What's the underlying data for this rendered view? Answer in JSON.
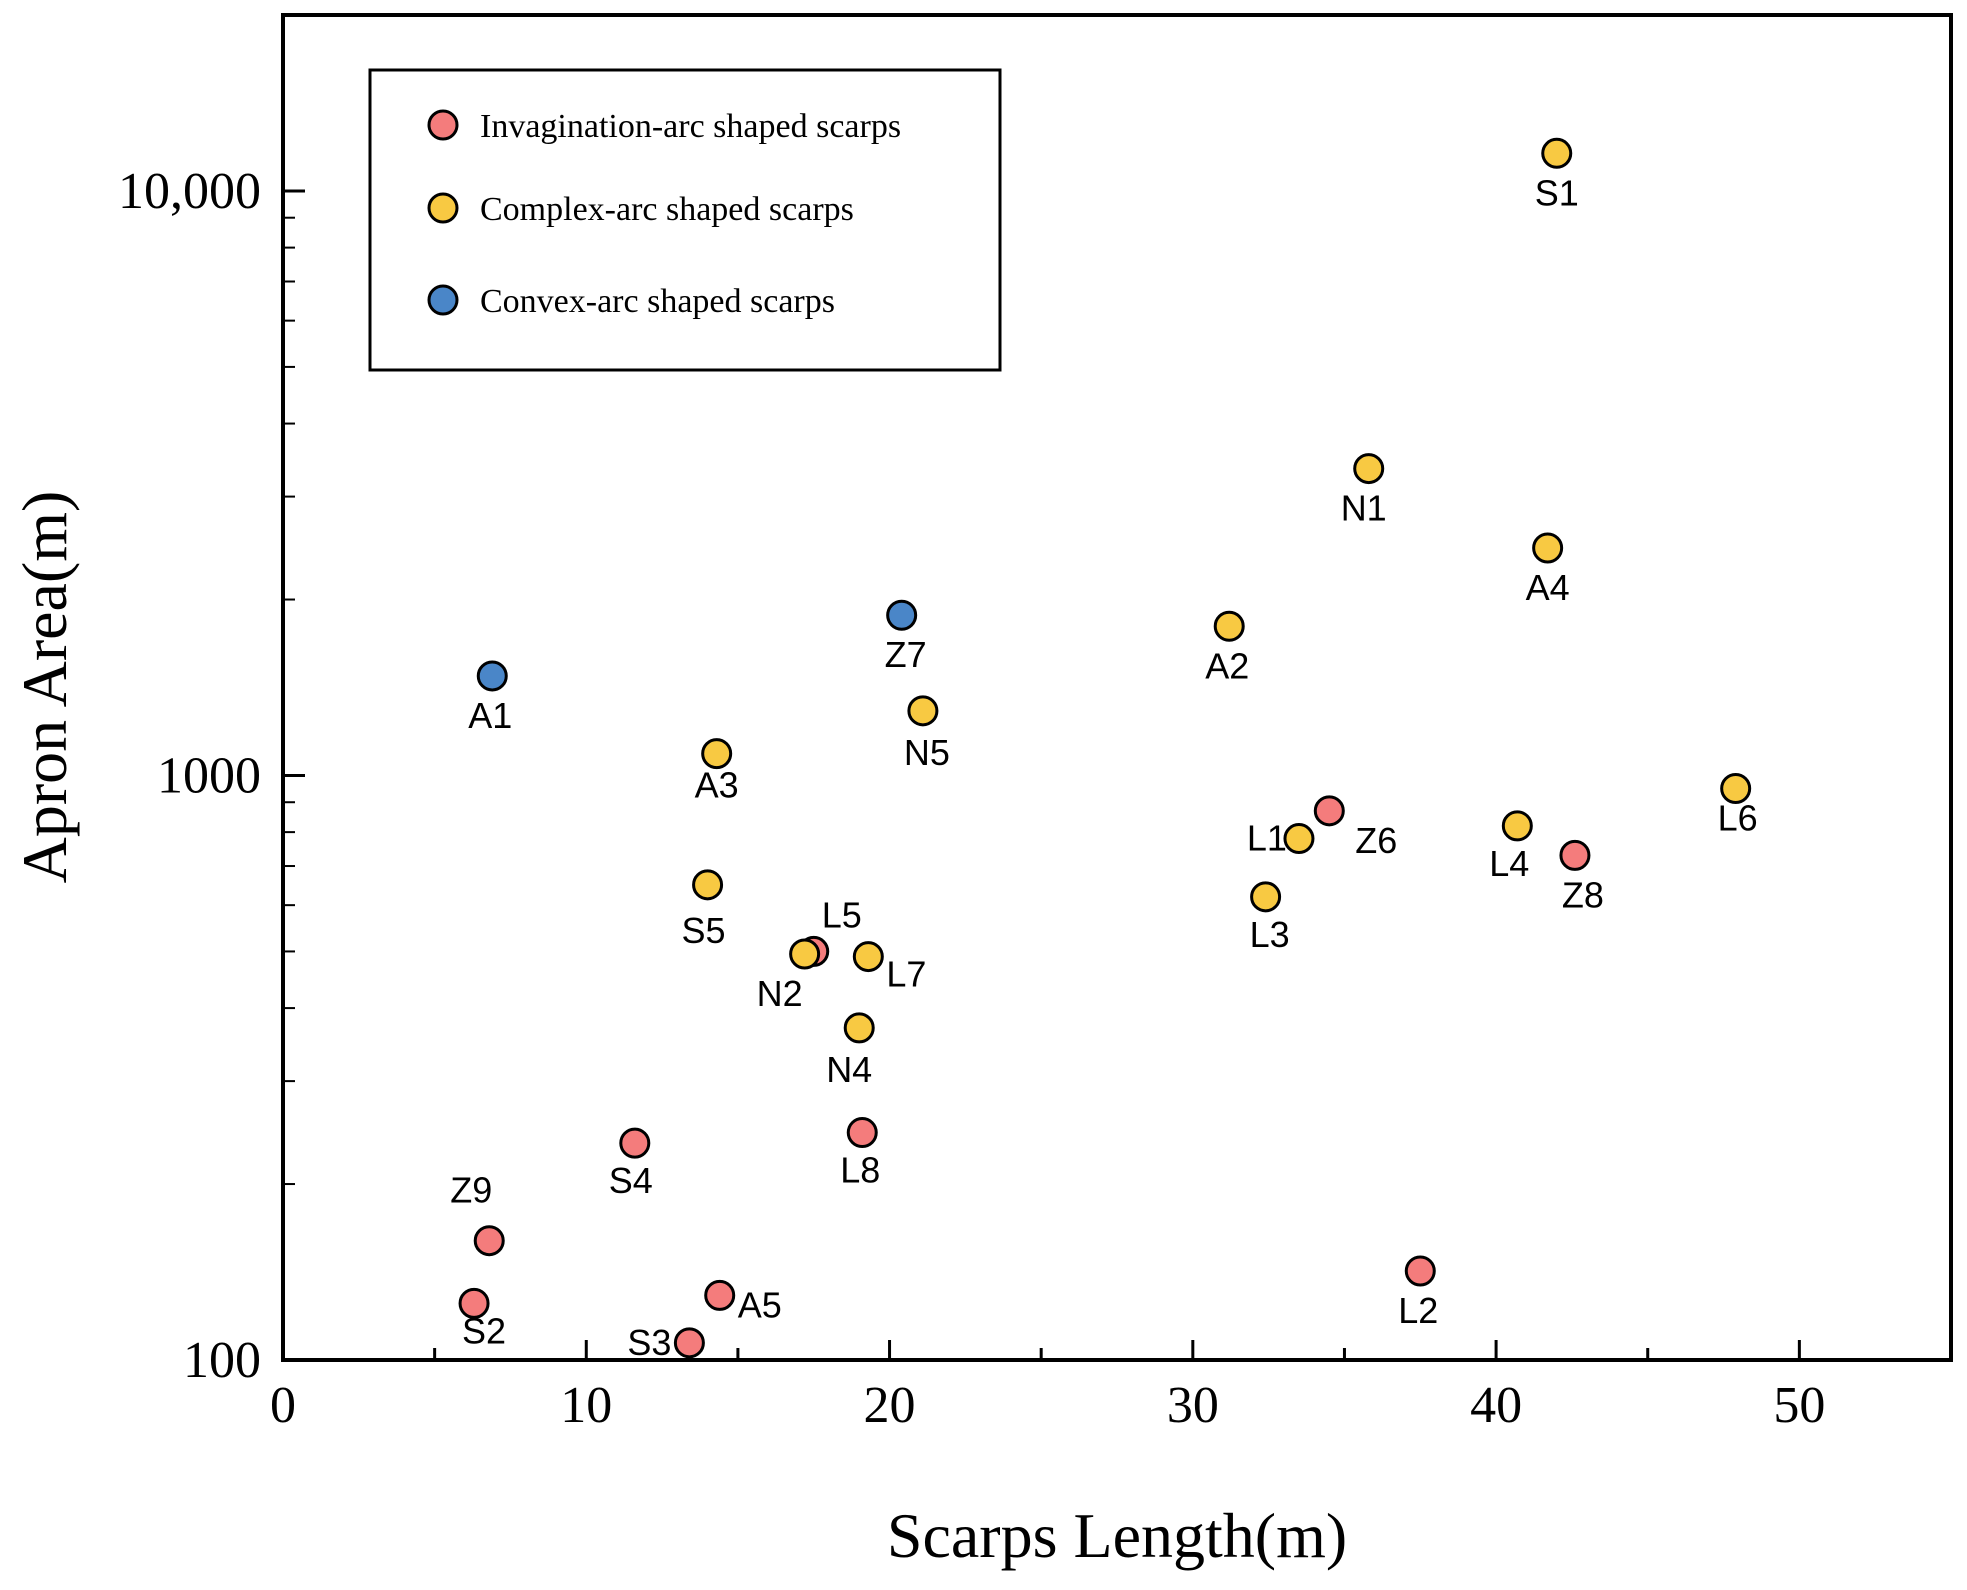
{
  "chart_data": {
    "type": "scatter",
    "title": "",
    "xlabel": "Scarps Length(m)",
    "ylabel": "Apron Area(m)",
    "xlim": [
      0,
      55
    ],
    "ylim": [
      100,
      20000
    ],
    "yscale": "log",
    "xticks": [
      0,
      10,
      20,
      30,
      40,
      50
    ],
    "xtick_labels": [
      "0",
      "10",
      "20",
      "30",
      "40",
      "50"
    ],
    "yticks": [
      100,
      1000,
      10000
    ],
    "ytick_labels": [
      "100",
      "1000",
      "10,000"
    ],
    "grid": false,
    "legend_position": "top-left",
    "series": [
      {
        "name": "Invagination-arc shaped scarps",
        "color": "#F47C7C",
        "points": [
          {
            "label": "Z6",
            "x": 34.5,
            "y": 870
          },
          {
            "label": "Z8",
            "x": 42.6,
            "y": 730
          },
          {
            "label": "L5",
            "x": 17.5,
            "y": 500
          },
          {
            "label": "L8",
            "x": 19.1,
            "y": 245
          },
          {
            "label": "S4",
            "x": 11.6,
            "y": 235
          },
          {
            "label": "Z9",
            "x": 6.8,
            "y": 160
          },
          {
            "label": "S2",
            "x": 6.3,
            "y": 125
          },
          {
            "label": "A5",
            "x": 14.4,
            "y": 129
          },
          {
            "label": "S3",
            "x": 13.4,
            "y": 107
          },
          {
            "label": "L2",
            "x": 37.5,
            "y": 142
          }
        ]
      },
      {
        "name": "Complex-arc shaped scarps",
        "color": "#F8C942",
        "points": [
          {
            "label": "S1",
            "x": 42.0,
            "y": 11600
          },
          {
            "label": "N1",
            "x": 35.8,
            "y": 3350
          },
          {
            "label": "A4",
            "x": 41.7,
            "y": 2450
          },
          {
            "label": "A2",
            "x": 31.2,
            "y": 1800
          },
          {
            "label": "N5",
            "x": 21.1,
            "y": 1290
          },
          {
            "label": "A3",
            "x": 14.3,
            "y": 1090
          },
          {
            "label": "L6",
            "x": 47.9,
            "y": 950
          },
          {
            "label": "L4",
            "x": 40.7,
            "y": 820
          },
          {
            "label": "L1",
            "x": 33.5,
            "y": 780
          },
          {
            "label": "L3",
            "x": 32.4,
            "y": 620
          },
          {
            "label": "S5",
            "x": 14.0,
            "y": 650
          },
          {
            "label": "N2",
            "x": 17.2,
            "y": 495
          },
          {
            "label": "L7",
            "x": 19.3,
            "y": 490
          },
          {
            "label": "N4",
            "x": 19.0,
            "y": 370
          }
        ]
      },
      {
        "name": "Convex-arc shaped scarps",
        "color": "#4A86C8",
        "points": [
          {
            "label": "Z7",
            "x": 20.4,
            "y": 1880
          },
          {
            "label": "A1",
            "x": 6.9,
            "y": 1480
          }
        ]
      }
    ]
  }
}
